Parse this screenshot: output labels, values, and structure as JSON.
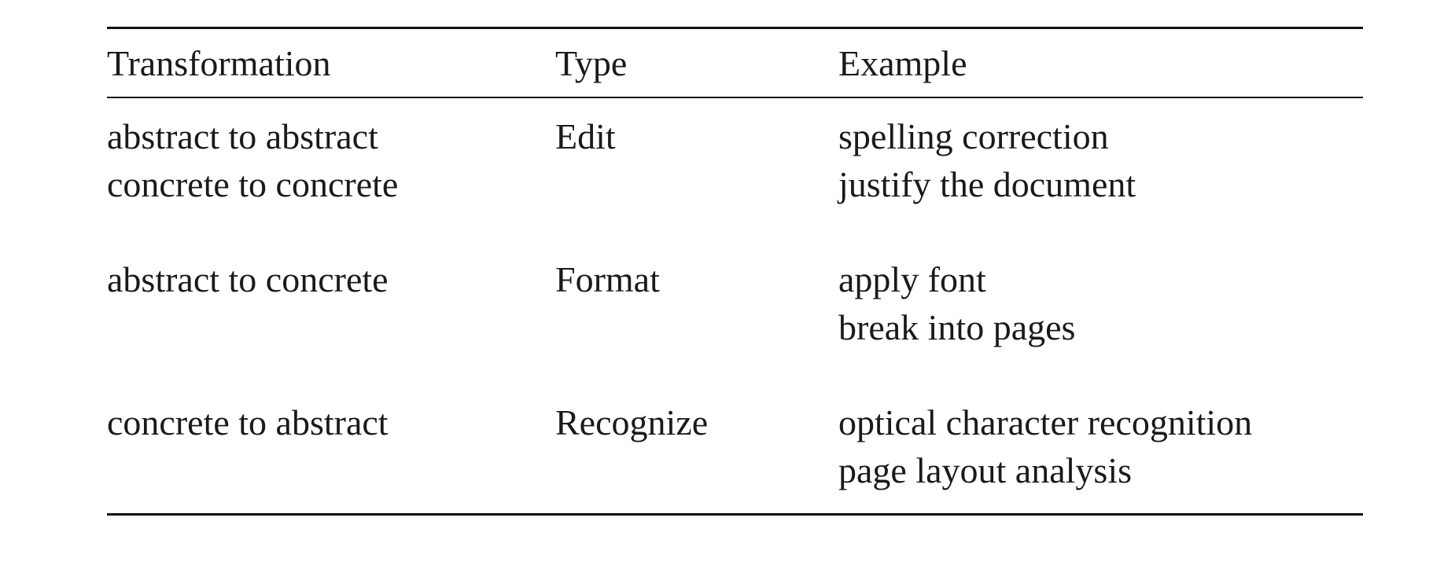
{
  "table": {
    "headers": {
      "transformation": "Transformation",
      "type": "Type",
      "example": "Example"
    },
    "rows": [
      {
        "transformation": [
          "abstract to abstract",
          "concrete to concrete"
        ],
        "type": "Edit",
        "example": [
          "spelling correction",
          "justify the document"
        ]
      },
      {
        "transformation": [
          "abstract to concrete"
        ],
        "type": "Format",
        "example": [
          "apply font",
          "break into pages"
        ]
      },
      {
        "transformation": [
          "concrete to abstract"
        ],
        "type": "Recognize",
        "example": [
          "optical character recognition",
          "page layout analysis"
        ]
      }
    ]
  }
}
